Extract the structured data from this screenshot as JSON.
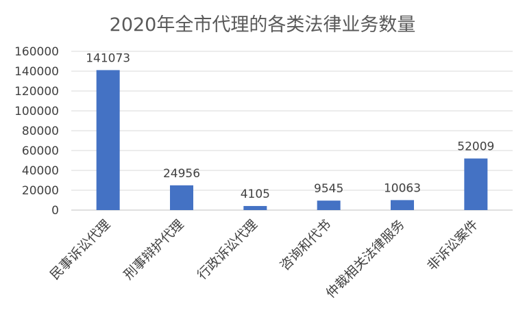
{
  "chart_data": {
    "type": "bar",
    "title": "2020年全市代理的各类法律业务数量",
    "categories": [
      "民事诉讼代理",
      "刑事辩护代理",
      "行政诉讼代理",
      "咨询和代书",
      "仲裁相关法律服务",
      "非诉讼案件"
    ],
    "values": [
      141073,
      24956,
      4105,
      9545,
      10063,
      52009
    ],
    "data_labels": [
      "141073",
      "24956",
      "4105",
      "9545",
      "10063",
      "52009"
    ],
    "ylim": [
      0,
      160000
    ],
    "yticks": [
      "0",
      "20000",
      "40000",
      "60000",
      "80000",
      "100000",
      "120000",
      "140000",
      "160000"
    ],
    "grid": true,
    "legend": "none",
    "bar_color": "#4472C4",
    "grid_color": "#D9D9D9"
  }
}
